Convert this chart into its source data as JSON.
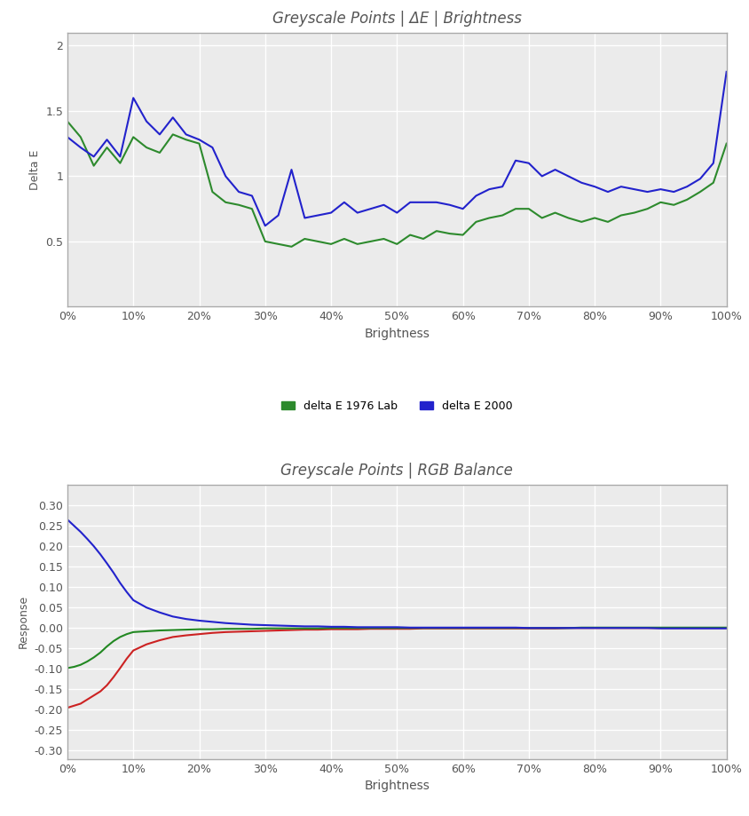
{
  "title1": "Greyscale Points | ΔE | Brightness",
  "title2": "Greyscale Points | RGB Balance",
  "xlabel": "Brightness",
  "ylabel1": "Delta E",
  "ylabel2": "Response",
  "background_color": "#ffffff",
  "plot_bg_color": "#ebebeb",
  "grid_color": "#ffffff",
  "title_color": "#555555",
  "axis_color": "#555555",
  "tick_color": "#555555",
  "brightness_pct": [
    0,
    2,
    4,
    6,
    8,
    10,
    12,
    14,
    16,
    18,
    20,
    22,
    24,
    26,
    28,
    30,
    32,
    34,
    36,
    38,
    40,
    42,
    44,
    46,
    48,
    50,
    52,
    54,
    56,
    58,
    60,
    62,
    64,
    66,
    68,
    70,
    72,
    74,
    76,
    78,
    80,
    82,
    84,
    86,
    88,
    90,
    92,
    94,
    96,
    98,
    100
  ],
  "dE1976": [
    1.42,
    1.3,
    1.08,
    1.22,
    1.1,
    1.3,
    1.22,
    1.18,
    1.32,
    1.28,
    1.25,
    0.88,
    0.8,
    0.78,
    0.75,
    0.5,
    0.48,
    0.46,
    0.52,
    0.5,
    0.48,
    0.52,
    0.48,
    0.5,
    0.52,
    0.48,
    0.55,
    0.52,
    0.58,
    0.56,
    0.55,
    0.65,
    0.68,
    0.7,
    0.75,
    0.75,
    0.68,
    0.72,
    0.68,
    0.65,
    0.68,
    0.65,
    0.7,
    0.72,
    0.75,
    0.8,
    0.78,
    0.82,
    0.88,
    0.95,
    1.25
  ],
  "dE2000": [
    1.3,
    1.22,
    1.15,
    1.28,
    1.15,
    1.6,
    1.42,
    1.32,
    1.45,
    1.32,
    1.28,
    1.22,
    1.0,
    0.88,
    0.85,
    0.62,
    0.7,
    1.05,
    0.68,
    0.7,
    0.72,
    0.8,
    0.72,
    0.75,
    0.78,
    0.72,
    0.8,
    0.8,
    0.8,
    0.78,
    0.75,
    0.85,
    0.9,
    0.92,
    1.12,
    1.1,
    1.0,
    1.05,
    1.0,
    0.95,
    0.92,
    0.88,
    0.92,
    0.9,
    0.88,
    0.9,
    0.88,
    0.92,
    0.98,
    1.1,
    1.8
  ],
  "rgb_brightness": [
    0,
    1,
    2,
    3,
    4,
    5,
    6,
    7,
    8,
    9,
    10,
    12,
    14,
    16,
    18,
    20,
    22,
    24,
    26,
    28,
    30,
    32,
    34,
    36,
    38,
    40,
    42,
    44,
    46,
    48,
    50,
    52,
    54,
    56,
    58,
    60,
    62,
    64,
    66,
    68,
    70,
    72,
    74,
    76,
    78,
    80,
    82,
    84,
    86,
    88,
    90,
    92,
    94,
    96,
    98,
    100
  ],
  "red": [
    -0.195,
    -0.19,
    -0.185,
    -0.175,
    -0.165,
    -0.155,
    -0.14,
    -0.12,
    -0.098,
    -0.075,
    -0.055,
    -0.04,
    -0.03,
    -0.022,
    -0.018,
    -0.015,
    -0.012,
    -0.01,
    -0.009,
    -0.008,
    -0.007,
    -0.006,
    -0.005,
    -0.004,
    -0.004,
    -0.003,
    -0.003,
    -0.003,
    -0.002,
    -0.002,
    -0.002,
    -0.002,
    -0.001,
    -0.001,
    -0.001,
    -0.001,
    -0.001,
    -0.001,
    -0.001,
    -0.001,
    -0.001,
    -0.001,
    -0.001,
    0.0,
    0.0,
    0.0,
    0.0,
    0.0,
    0.0,
    0.0,
    0.0,
    0.0,
    0.0,
    0.0,
    0.0,
    0.0
  ],
  "green": [
    -0.098,
    -0.095,
    -0.09,
    -0.082,
    -0.072,
    -0.06,
    -0.045,
    -0.032,
    -0.022,
    -0.015,
    -0.01,
    -0.008,
    -0.006,
    -0.005,
    -0.004,
    -0.003,
    -0.003,
    -0.002,
    -0.002,
    -0.002,
    -0.001,
    -0.001,
    -0.001,
    -0.001,
    -0.001,
    0.0,
    0.0,
    0.0,
    0.0,
    0.0,
    0.0,
    0.0,
    0.0,
    0.0,
    0.0,
    0.0,
    0.0,
    0.0,
    0.0,
    0.0,
    0.0,
    0.0,
    0.0,
    0.0,
    0.001,
    0.001,
    0.001,
    0.001,
    0.001,
    0.001,
    0.001,
    0.001,
    0.001,
    0.001,
    0.001,
    0.001
  ],
  "blue": [
    0.265,
    0.25,
    0.235,
    0.218,
    0.2,
    0.18,
    0.158,
    0.135,
    0.11,
    0.088,
    0.068,
    0.05,
    0.038,
    0.028,
    0.022,
    0.018,
    0.015,
    0.012,
    0.01,
    0.008,
    0.007,
    0.006,
    0.005,
    0.004,
    0.004,
    0.003,
    0.003,
    0.002,
    0.002,
    0.002,
    0.002,
    0.001,
    0.001,
    0.001,
    0.001,
    0.001,
    0.001,
    0.001,
    0.001,
    0.001,
    0.0,
    0.0,
    0.0,
    0.0,
    0.0,
    0.0,
    0.0,
    0.0,
    0.0,
    0.0,
    -0.001,
    -0.001,
    -0.001,
    -0.001,
    -0.001,
    -0.001
  ],
  "dE1976_color": "#2d8a2d",
  "dE2000_color": "#2222cc",
  "red_color": "#cc2222",
  "green_color": "#228822",
  "blue_color": "#2222cc",
  "ylim1": [
    0,
    2.1
  ],
  "ylim2": [
    -0.32,
    0.35
  ],
  "yticks1": [
    0,
    0.5,
    1.0,
    1.5,
    2.0
  ],
  "yticks2": [
    -0.3,
    -0.25,
    -0.2,
    -0.15,
    -0.1,
    -0.05,
    0.0,
    0.05,
    0.1,
    0.15,
    0.2,
    0.25,
    0.3
  ],
  "legend_label1": "delta E 1976 Lab",
  "legend_label2": "delta E 2000",
  "spine_color": "#aaaaaa",
  "linewidth": 1.5
}
